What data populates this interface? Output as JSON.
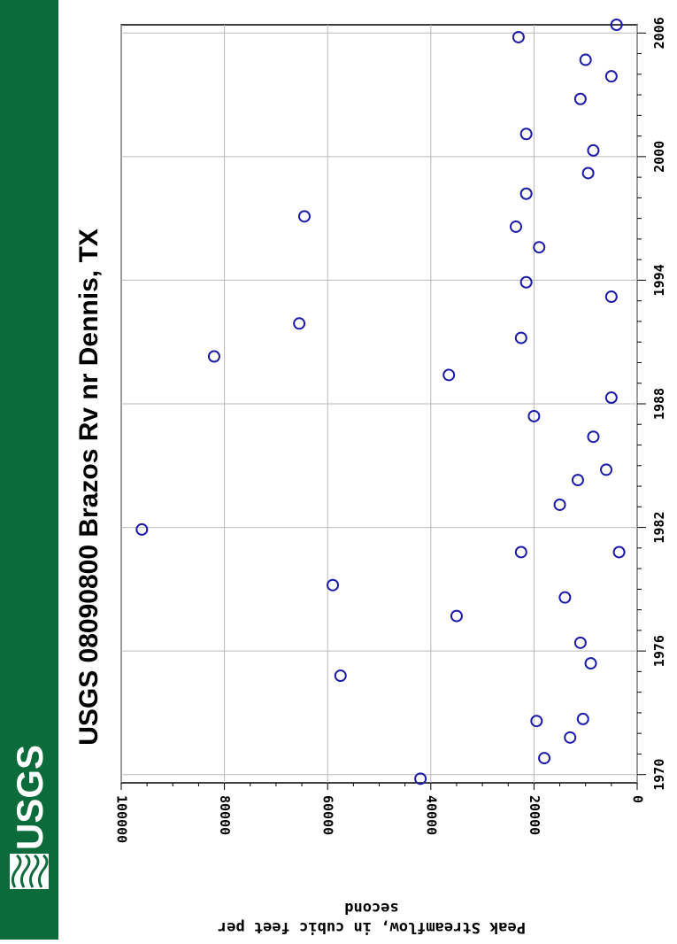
{
  "logo": {
    "text": "USGS",
    "color": "#0b6b3a"
  },
  "chart_data": {
    "type": "scatter",
    "title": "USGS 08090800 Brazos Rv nr Dennis, TX",
    "xlabel": "",
    "ylabel_line1": "Peak Streamflow, in cubic feet per",
    "ylabel_line2": "second",
    "xlim": [
      1969.6,
      2006.4
    ],
    "ylim": [
      0,
      100000
    ],
    "x_ticks": [
      1970,
      1976,
      1982,
      1988,
      1994,
      2000,
      2006
    ],
    "y_ticks": [
      0,
      20000,
      40000,
      60000,
      80000,
      100000
    ],
    "grid": true,
    "marker": "open-circle",
    "marker_color": "#1c1ca8",
    "series": [
      {
        "points": [
          {
            "x": 1969.8,
            "y": 42000
          },
          {
            "x": 1970.8,
            "y": 18000
          },
          {
            "x": 1971.8,
            "y": 13000
          },
          {
            "x": 1972.6,
            "y": 19500
          },
          {
            "x": 1972.7,
            "y": 10500
          },
          {
            "x": 1974.8,
            "y": 57500
          },
          {
            "x": 1975.4,
            "y": 9000
          },
          {
            "x": 1976.4,
            "y": 11000
          },
          {
            "x": 1977.7,
            "y": 35000
          },
          {
            "x": 1978.6,
            "y": 14000
          },
          {
            "x": 1979.2,
            "y": 59000
          },
          {
            "x": 1980.8,
            "y": 22500
          },
          {
            "x": 1980.8,
            "y": 3500
          },
          {
            "x": 1981.9,
            "y": 96000
          },
          {
            "x": 1983.1,
            "y": 15000
          },
          {
            "x": 1984.3,
            "y": 11500
          },
          {
            "x": 1984.8,
            "y": 6000
          },
          {
            "x": 1986.4,
            "y": 8500
          },
          {
            "x": 1987.4,
            "y": 20000
          },
          {
            "x": 1988.3,
            "y": 5000
          },
          {
            "x": 1989.4,
            "y": 36500
          },
          {
            "x": 1990.3,
            "y": 82000
          },
          {
            "x": 1991.2,
            "y": 22500
          },
          {
            "x": 1991.9,
            "y": 65500
          },
          {
            "x": 1993.2,
            "y": 5000
          },
          {
            "x": 1993.9,
            "y": 21500
          },
          {
            "x": 1995.6,
            "y": 19000
          },
          {
            "x": 1996.6,
            "y": 23500
          },
          {
            "x": 1997.1,
            "y": 64500
          },
          {
            "x": 1998.2,
            "y": 21500
          },
          {
            "x": 1999.2,
            "y": 9500
          },
          {
            "x": 2000.3,
            "y": 8500
          },
          {
            "x": 2001.1,
            "y": 21500
          },
          {
            "x": 2002.8,
            "y": 11000
          },
          {
            "x": 2003.9,
            "y": 5000
          },
          {
            "x": 2004.7,
            "y": 10000
          },
          {
            "x": 2005.8,
            "y": 23000
          },
          {
            "x": 2006.4,
            "y": 4000
          }
        ]
      }
    ]
  }
}
